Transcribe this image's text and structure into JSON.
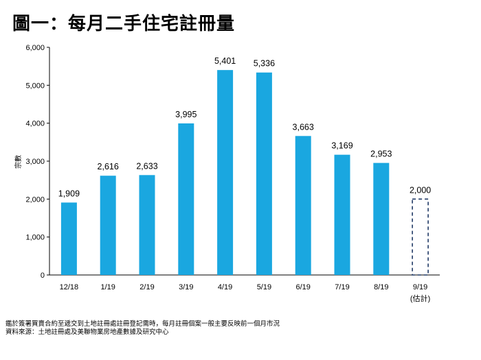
{
  "header": {
    "title": "圖一：每月二手住宅註冊量"
  },
  "chart_data": {
    "type": "bar",
    "title": "圖一：每月二手住宅註冊量",
    "xlabel": "",
    "ylabel": "宗數",
    "ylim": [
      0,
      6000
    ],
    "yticks": [
      "0",
      "1,000",
      "2,000",
      "3,000",
      "4,000",
      "5,000",
      "6,000"
    ],
    "grid": false,
    "bar_color": "#1aa7e0",
    "estimate_color": "#1f3864",
    "categories": [
      "12/18",
      "1/19",
      "2/19",
      "3/19",
      "4/19",
      "5/19",
      "6/19",
      "7/19",
      "8/19",
      "9/19"
    ],
    "category_notes": [
      "",
      "",
      "",
      "",
      "",
      "",
      "",
      "",
      "",
      "(估計)"
    ],
    "values": [
      1909,
      2616,
      2633,
      3995,
      5401,
      5336,
      3663,
      3169,
      2953,
      2000
    ],
    "value_labels": [
      "1,909",
      "2,616",
      "2,633",
      "3,995",
      "5,401",
      "5,336",
      "3,663",
      "3,169",
      "2,953",
      "2,000"
    ],
    "estimated": [
      false,
      false,
      false,
      false,
      false,
      false,
      false,
      false,
      false,
      true
    ]
  },
  "notes": {
    "line1": "鑑於簽署買賣合約至遞交到土地註冊處註冊登記需時，每月註冊個案一般主要反映前一個月市況",
    "line2": "資料來源：土地註冊處及美聯物業房地產數據及研究中心"
  }
}
